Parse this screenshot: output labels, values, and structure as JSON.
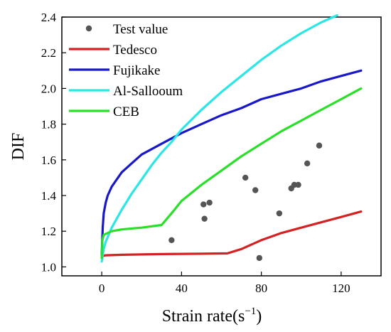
{
  "chart_data": {
    "type": "line",
    "xlabel": "Strain rate(s",
    "xlabel_sup": "−1",
    "xlabel_close": ")",
    "ylabel": "DIF",
    "xlim": [
      -20,
      140
    ],
    "ylim": [
      0.95,
      2.4
    ],
    "xticks": [
      0,
      40,
      80,
      120
    ],
    "yticks": [
      1.0,
      1.2,
      1.4,
      1.6,
      1.8,
      2.0,
      2.2,
      2.4
    ],
    "grid": false,
    "legend_position": "top-left",
    "series": [
      {
        "name": "Test value",
        "kind": "scatter",
        "color": "#555555",
        "points": [
          [
            35,
            1.15
          ],
          [
            51,
            1.35
          ],
          [
            51.5,
            1.27
          ],
          [
            54,
            1.36
          ],
          [
            72,
            1.5
          ],
          [
            77,
            1.43
          ],
          [
            79,
            1.05
          ],
          [
            89,
            1.3
          ],
          [
            95,
            1.44
          ],
          [
            96.5,
            1.46
          ],
          [
            98.5,
            1.46
          ],
          [
            103,
            1.58
          ],
          [
            109,
            1.68
          ]
        ]
      },
      {
        "name": "Tedesco",
        "kind": "line",
        "color": "#d42121",
        "points": [
          [
            0,
            1.06
          ],
          [
            2,
            1.065
          ],
          [
            10,
            1.068
          ],
          [
            20,
            1.07
          ],
          [
            30,
            1.072
          ],
          [
            40,
            1.073
          ],
          [
            50,
            1.074
          ],
          [
            63,
            1.076
          ],
          [
            70,
            1.1
          ],
          [
            80,
            1.15
          ],
          [
            90,
            1.19
          ],
          [
            100,
            1.22
          ],
          [
            110,
            1.25
          ],
          [
            120,
            1.28
          ],
          [
            130,
            1.31
          ]
        ]
      },
      {
        "name": "Fujikake",
        "kind": "line",
        "color": "#1818c8",
        "points": [
          [
            0,
            1.07
          ],
          [
            0.5,
            1.22
          ],
          [
            1,
            1.3
          ],
          [
            2,
            1.36
          ],
          [
            3,
            1.4
          ],
          [
            5,
            1.45
          ],
          [
            10,
            1.53
          ],
          [
            15,
            1.58
          ],
          [
            20,
            1.63
          ],
          [
            30,
            1.69
          ],
          [
            40,
            1.75
          ],
          [
            50,
            1.8
          ],
          [
            60,
            1.85
          ],
          [
            70,
            1.89
          ],
          [
            80,
            1.94
          ],
          [
            90,
            1.97
          ],
          [
            100,
            2.0
          ],
          [
            110,
            2.04
          ],
          [
            120,
            2.07
          ],
          [
            130,
            2.1
          ]
        ]
      },
      {
        "name": "Al-Sallooum",
        "kind": "line",
        "color": "#2ae6e6",
        "points": [
          [
            0,
            1.03
          ],
          [
            1,
            1.1
          ],
          [
            2,
            1.14
          ],
          [
            5,
            1.22
          ],
          [
            10,
            1.32
          ],
          [
            15,
            1.41
          ],
          [
            20,
            1.49
          ],
          [
            25,
            1.57
          ],
          [
            30,
            1.64
          ],
          [
            35,
            1.7
          ],
          [
            40,
            1.77
          ],
          [
            50,
            1.88
          ],
          [
            60,
            1.98
          ],
          [
            70,
            2.07
          ],
          [
            80,
            2.16
          ],
          [
            90,
            2.24
          ],
          [
            100,
            2.31
          ],
          [
            110,
            2.37
          ],
          [
            118,
            2.41
          ]
        ]
      },
      {
        "name": "CEB",
        "kind": "line",
        "color": "#27e027",
        "points": [
          [
            0,
            1.05
          ],
          [
            0.3,
            1.15
          ],
          [
            1,
            1.18
          ],
          [
            5,
            1.2
          ],
          [
            10,
            1.21
          ],
          [
            20,
            1.22
          ],
          [
            30,
            1.235
          ],
          [
            35,
            1.3
          ],
          [
            40,
            1.37
          ],
          [
            50,
            1.46
          ],
          [
            60,
            1.54
          ],
          [
            70,
            1.62
          ],
          [
            80,
            1.69
          ],
          [
            90,
            1.76
          ],
          [
            100,
            1.82
          ],
          [
            110,
            1.88
          ],
          [
            120,
            1.94
          ],
          [
            130,
            2.0
          ]
        ]
      }
    ]
  }
}
